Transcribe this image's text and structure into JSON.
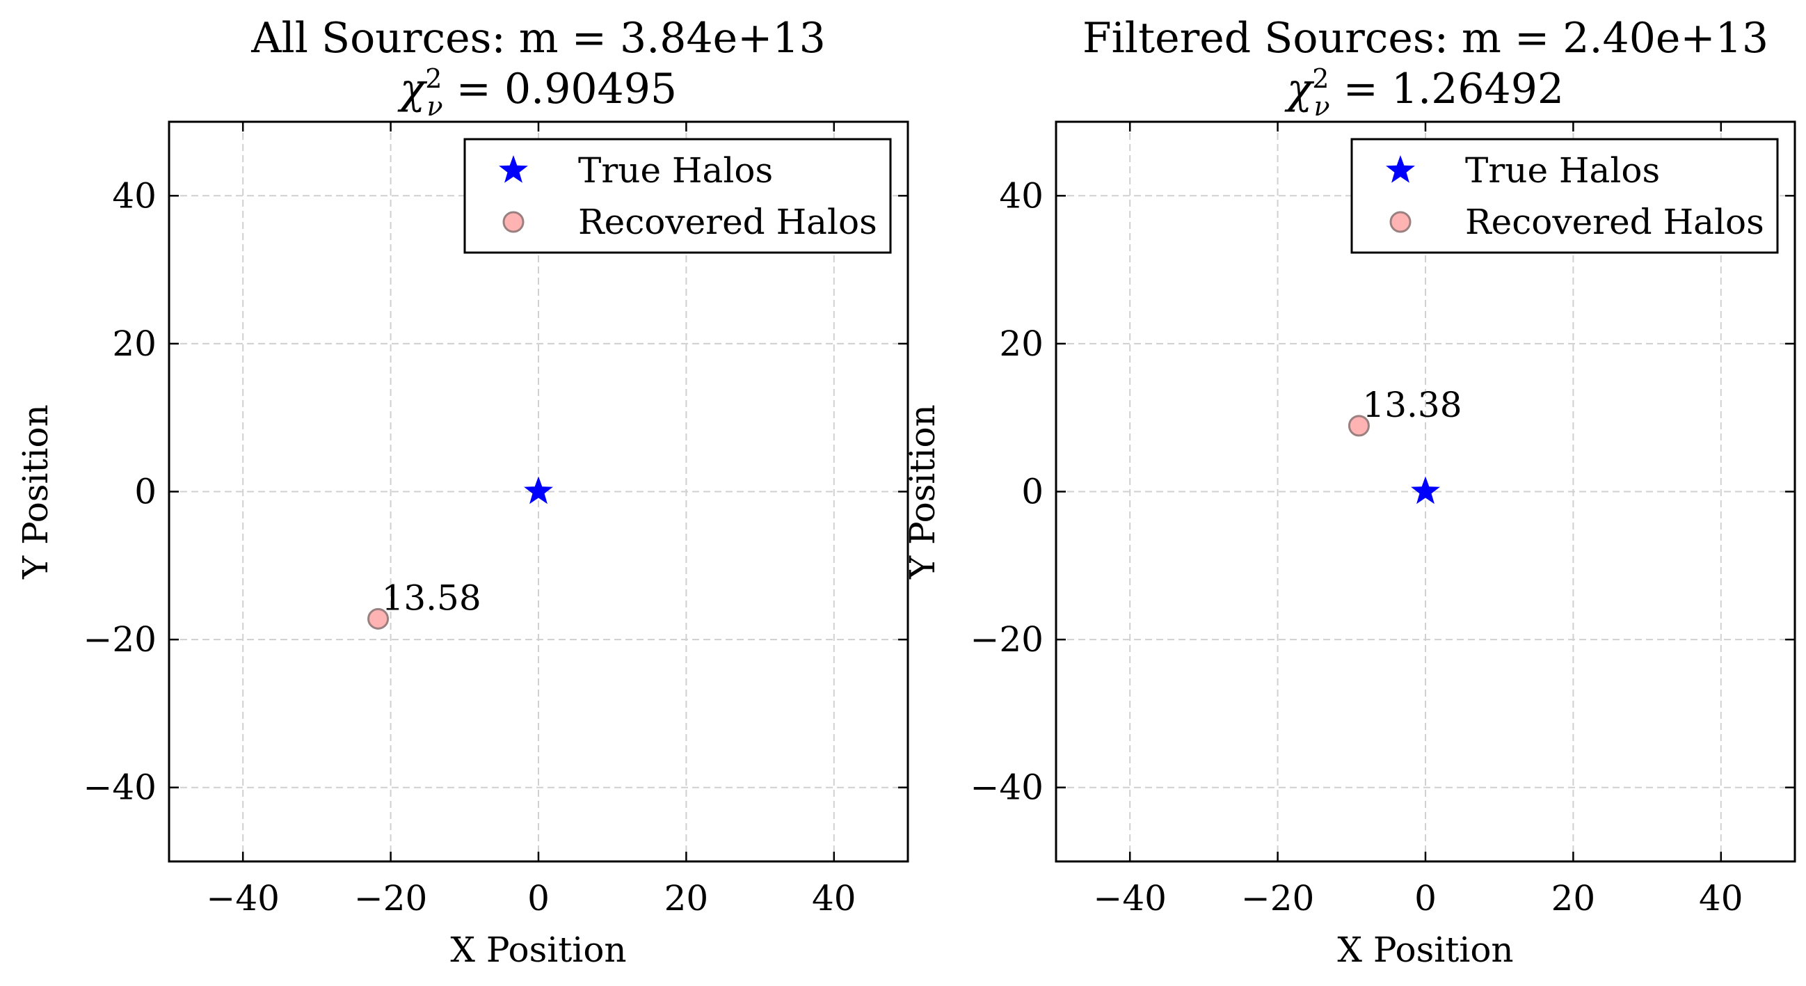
{
  "chart_data": [
    {
      "type": "scatter",
      "title": "All Sources: m = 3.84e+13",
      "subtitle_prefix": "χ",
      "subtitle_sub": "ν",
      "subtitle_sup": "2",
      "subtitle_value": " = 0.90495",
      "xlabel": "X Position",
      "ylabel": "Y Position",
      "xlim": [
        -50,
        50
      ],
      "ylim": [
        -50,
        50
      ],
      "xticks": [
        -40,
        -20,
        0,
        20,
        40
      ],
      "yticks": [
        -40,
        -20,
        0,
        20,
        40
      ],
      "xtick_labels": [
        "−40",
        "−20",
        "0",
        "20",
        "40"
      ],
      "ytick_labels": [
        "−40",
        "−20",
        "0",
        "20",
        "40"
      ],
      "grid": true,
      "legend_position": "top-right",
      "series": [
        {
          "name": "True Halos",
          "marker": "star",
          "color": "#0000ff",
          "points": [
            {
              "x": 0,
              "y": 0
            }
          ]
        },
        {
          "name": "Recovered Halos",
          "marker": "circle",
          "color": "#ffb3b3",
          "edge_color": "#9a8080",
          "points": [
            {
              "x": -21.7,
              "y": -17.2,
              "label": "13.58"
            }
          ]
        }
      ]
    },
    {
      "type": "scatter",
      "title": "Filtered Sources: m = 2.40e+13",
      "subtitle_prefix": "χ",
      "subtitle_sub": "ν",
      "subtitle_sup": "2",
      "subtitle_value": " = 1.26492",
      "xlabel": "X Position",
      "ylabel": "Y Position",
      "xlim": [
        -50,
        50
      ],
      "ylim": [
        -50,
        50
      ],
      "xticks": [
        -40,
        -20,
        0,
        20,
        40
      ],
      "yticks": [
        -40,
        -20,
        0,
        20,
        40
      ],
      "xtick_labels": [
        "−40",
        "−20",
        "0",
        "20",
        "40"
      ],
      "ytick_labels": [
        "−40",
        "−20",
        "0",
        "20",
        "40"
      ],
      "grid": true,
      "legend_position": "top-right",
      "series": [
        {
          "name": "True Halos",
          "marker": "star",
          "color": "#0000ff",
          "points": [
            {
              "x": 0,
              "y": 0
            }
          ]
        },
        {
          "name": "Recovered Halos",
          "marker": "circle",
          "color": "#ffb3b3",
          "edge_color": "#9a8080",
          "points": [
            {
              "x": -9.0,
              "y": 8.9,
              "label": "13.38"
            }
          ]
        }
      ]
    }
  ]
}
